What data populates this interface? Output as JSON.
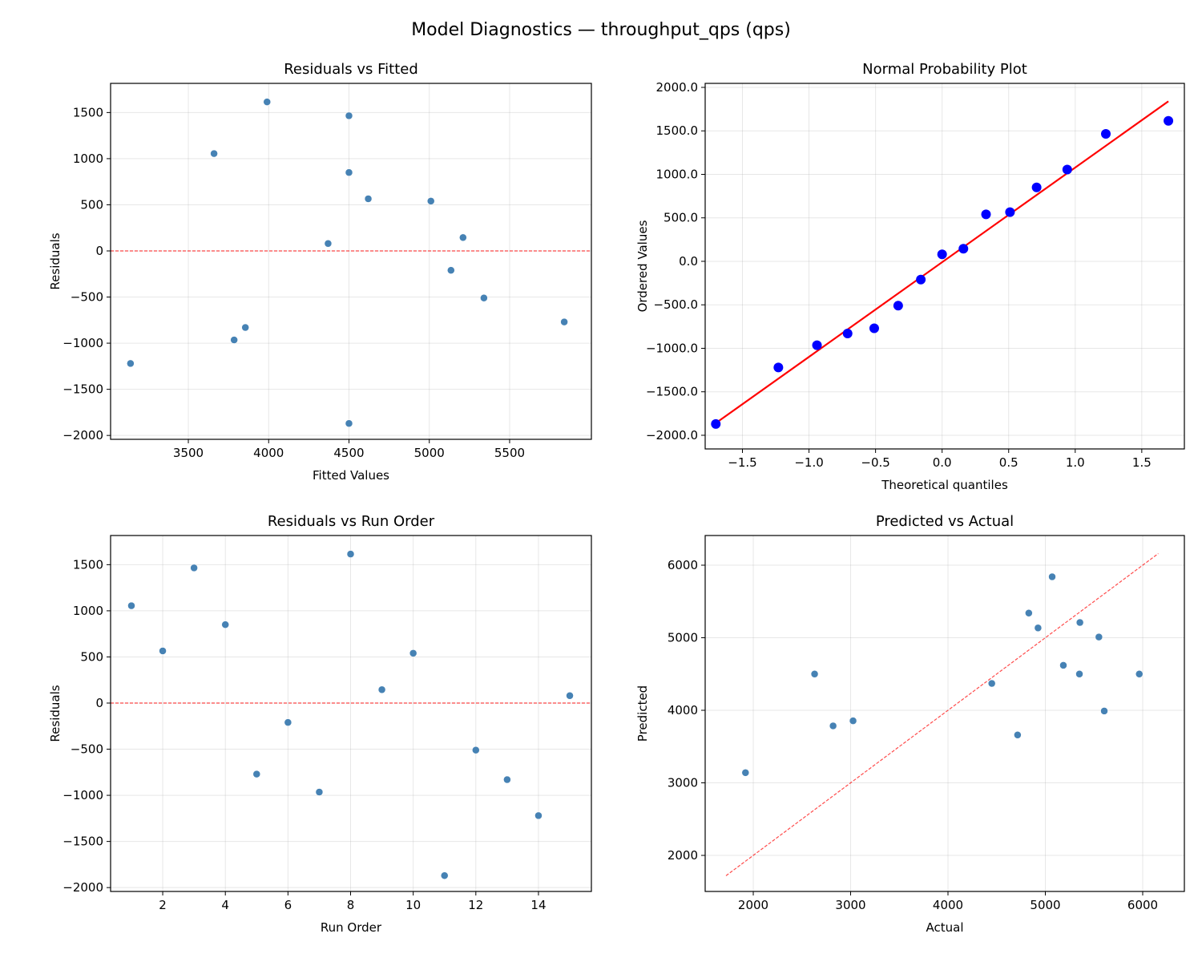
{
  "title": "Model Diagnostics — throughput_qps (qps)",
  "chart_data": [
    {
      "type": "scatter",
      "title": "Residuals vs Fitted",
      "xlabel": "Fitted Values",
      "ylabel": "Residuals",
      "xlim": [
        3016,
        6009
      ],
      "ylim": [
        -2042,
        1816
      ],
      "xticks": [
        3500,
        4000,
        4500,
        5000,
        5500
      ],
      "yticks": [
        -2000,
        -1500,
        -1000,
        -500,
        0,
        500,
        1000,
        1500
      ],
      "grid": true,
      "x": [
        3660,
        4620,
        4500,
        4500,
        5840,
        5135,
        3785,
        3990,
        5210,
        5010,
        4500,
        5340,
        3855,
        3140,
        4370
      ],
      "y": [
        1055,
        565,
        1465,
        850,
        -770,
        -210,
        -965,
        1615,
        145,
        540,
        -1870,
        -510,
        -830,
        -1220,
        80
      ],
      "reference_line": {
        "type": "horizontal",
        "y": 0,
        "color": "#ff0000",
        "style": "dashed"
      },
      "point_color": "#4682b4"
    },
    {
      "type": "scatter",
      "title": "Normal Probability Plot",
      "xlabel": "Theoretical quantiles",
      "ylabel": "Ordered Values",
      "xlim": [
        -1.78,
        1.82
      ],
      "ylim": [
        -2157,
        2046
      ],
      "xticks": [
        -1.5,
        -1.0,
        -0.5,
        0.0,
        0.5,
        1.0,
        1.5
      ],
      "yticks": [
        -2000,
        -1500,
        -1000,
        -500,
        0,
        500,
        1000,
        1500,
        2000
      ],
      "tick_decimals": 1,
      "grid": true,
      "x": [
        -1.7,
        -1.23,
        -0.94,
        -0.71,
        -0.51,
        -0.33,
        -0.16,
        0.0,
        0.16,
        0.33,
        0.51,
        0.71,
        0.94,
        1.23,
        1.7
      ],
      "y": [
        -1870,
        -1220,
        -965,
        -830,
        -770,
        -510,
        -210,
        80,
        145,
        540,
        565,
        850,
        1055,
        1465,
        1615
      ],
      "fit_line": {
        "x": [
          -1.7,
          1.7
        ],
        "y": [
          -1860,
          1840
        ],
        "color": "#ff0000",
        "style": "solid"
      },
      "point_color": "#0000ff"
    },
    {
      "type": "scatter",
      "title": "Residuals vs Run Order",
      "xlabel": "Run Order",
      "ylabel": "Residuals",
      "xlim": [
        0.335,
        15.69
      ],
      "ylim": [
        -2042,
        1816
      ],
      "xticks": [
        2,
        4,
        6,
        8,
        10,
        12,
        14
      ],
      "yticks": [
        -2000,
        -1500,
        -1000,
        -500,
        0,
        500,
        1000,
        1500
      ],
      "grid": true,
      "x": [
        1,
        2,
        3,
        4,
        5,
        6,
        7,
        8,
        9,
        10,
        11,
        12,
        13,
        14,
        15
      ],
      "y": [
        1055,
        565,
        1465,
        850,
        -770,
        -210,
        -965,
        1615,
        145,
        540,
        -1870,
        -510,
        -830,
        -1220,
        80
      ],
      "reference_line": {
        "type": "horizontal",
        "y": 0,
        "color": "#ff0000",
        "style": "dashed"
      },
      "point_color": "#4682b4"
    },
    {
      "type": "scatter",
      "title": "Predicted vs Actual",
      "xlabel": "Actual",
      "ylabel": "Predicted",
      "xlim": [
        1506,
        6428
      ],
      "ylim": [
        1503,
        6409
      ],
      "xticks": [
        2000,
        3000,
        4000,
        5000,
        6000
      ],
      "yticks": [
        2000,
        3000,
        4000,
        5000,
        6000
      ],
      "grid": true,
      "x": [
        4715,
        5185,
        5965,
        5350,
        5070,
        4925,
        2820,
        5605,
        5355,
        5550,
        2630,
        4830,
        3025,
        1920,
        4450
      ],
      "y": [
        3660,
        4620,
        4500,
        4500,
        5840,
        5135,
        3785,
        3990,
        5210,
        5010,
        4500,
        5340,
        3855,
        3140,
        4370
      ],
      "fit_line": {
        "x": [
          1720,
          6160
        ],
        "y": [
          1720,
          6160
        ],
        "color": "#ff0000",
        "style": "dashed"
      },
      "point_color": "#4682b4"
    }
  ]
}
